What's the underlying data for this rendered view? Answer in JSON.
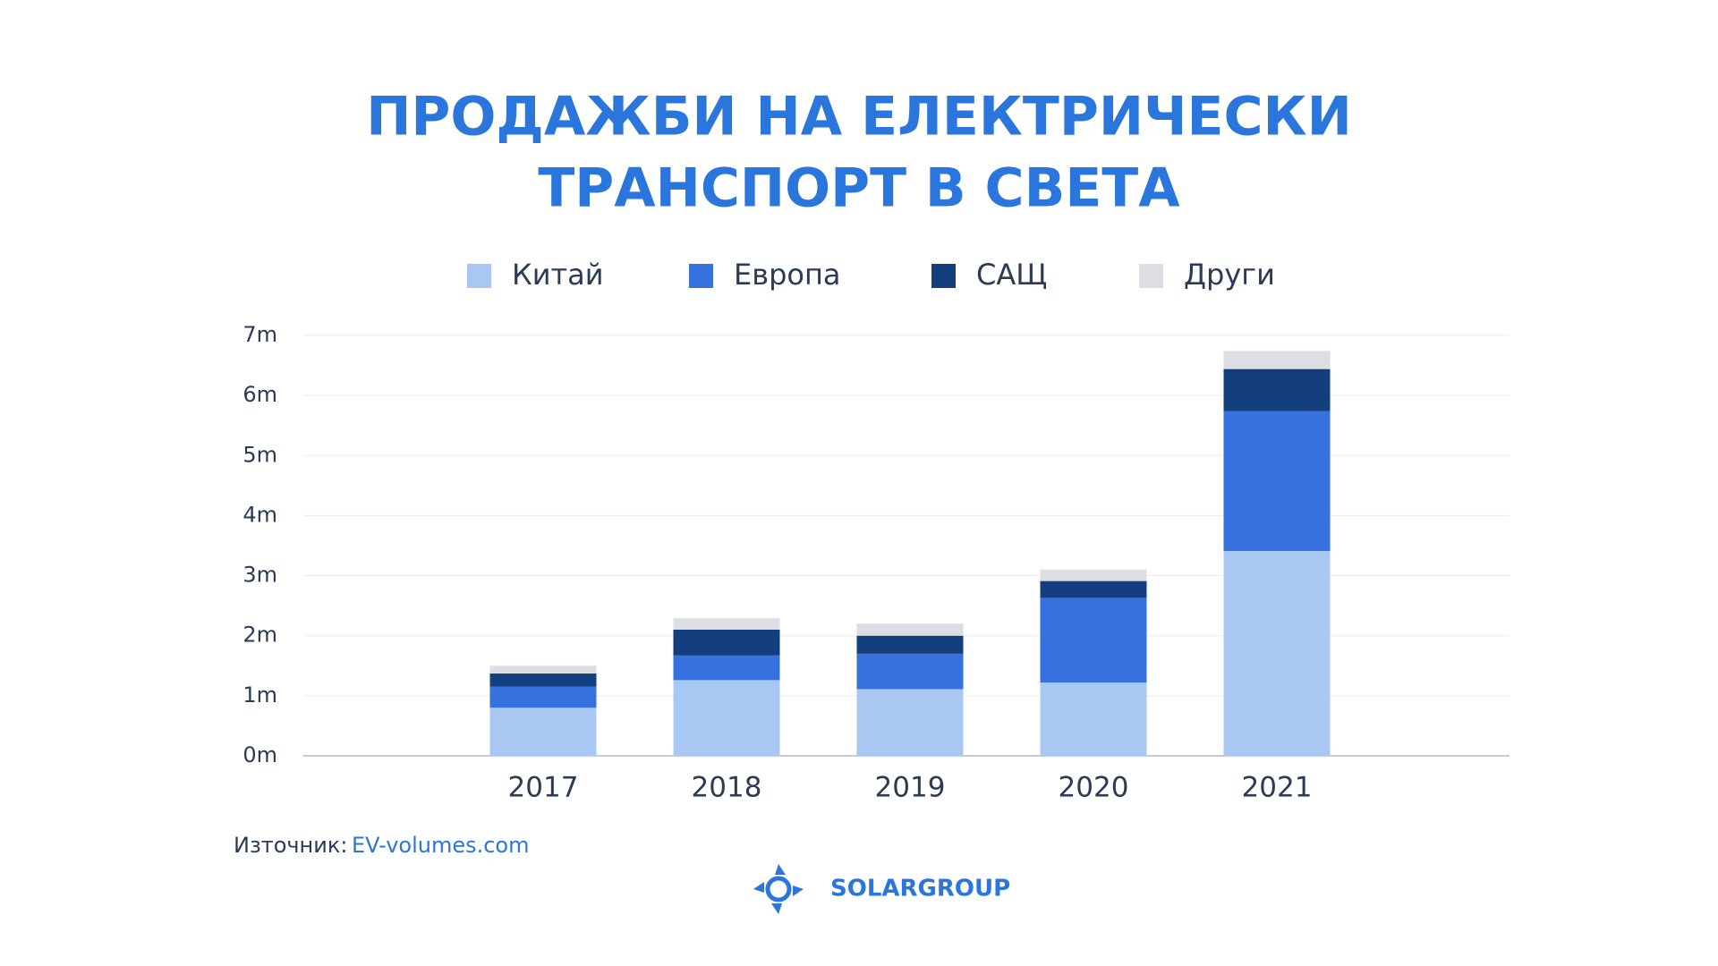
{
  "chart_data": {
    "type": "stacked_bar",
    "title": [
      "ПРОДАЖБИ НА ЕЛЕКТРИЧЕСКИ",
      "ТРАНСПОРТ В СВЕТА"
    ],
    "categories": [
      "2017",
      "2018",
      "2019",
      "2020",
      "2021"
    ],
    "series": [
      {
        "name": "Китай",
        "color": "#a8c8f3",
        "values": [
          0.8,
          1.26,
          1.11,
          1.22,
          3.41
        ]
      },
      {
        "name": "Европа",
        "color": "#3572e0",
        "values": [
          0.35,
          0.41,
          0.59,
          1.41,
          2.33
        ]
      },
      {
        "name": "САЩ",
        "color": "#143f7e",
        "values": [
          0.22,
          0.43,
          0.3,
          0.28,
          0.7
        ]
      },
      {
        "name": "Други",
        "color": "#dcdee3",
        "values": [
          0.13,
          0.19,
          0.2,
          0.19,
          0.3
        ]
      }
    ],
    "ylim": [
      0,
      7
    ],
    "yticks": [
      {
        "value": 0,
        "label": "0m"
      },
      {
        "value": 1,
        "label": "1m"
      },
      {
        "value": 2,
        "label": "2m"
      },
      {
        "value": 3,
        "label": "3m"
      },
      {
        "value": 4,
        "label": "4m"
      },
      {
        "value": 5,
        "label": "5m"
      },
      {
        "value": 6,
        "label": "6m"
      },
      {
        "value": 7,
        "label": "7m"
      }
    ],
    "grid": true,
    "legend": "top",
    "source_label": "Източник:",
    "source": "EV-volumes.com"
  },
  "logo": "SOLARGROUP"
}
